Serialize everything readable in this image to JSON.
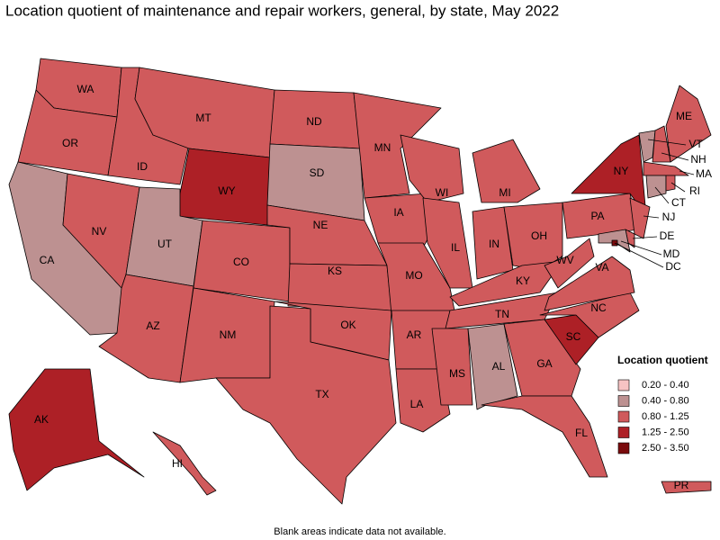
{
  "title": "Location quotient of maintenance and repair workers, general, by state, May 2022",
  "footnote": "Blank areas indicate data not available.",
  "legend": {
    "title": "Location quotient",
    "items": [
      {
        "label": "0.20 - 0.40",
        "color": "#f6c3c3"
      },
      {
        "label": "0.40 - 0.80",
        "color": "#bd9191"
      },
      {
        "label": "0.80 - 1.25",
        "color": "#d05a5c"
      },
      {
        "label": "1.25 - 2.50",
        "color": "#ad2026"
      },
      {
        "label": "2.50 - 3.50",
        "color": "#7a0b0d"
      }
    ]
  },
  "states": [
    {
      "label": "WA",
      "bin": 2
    },
    {
      "label": "OR",
      "bin": 2
    },
    {
      "label": "CA",
      "bin": 1
    },
    {
      "label": "NV",
      "bin": 2
    },
    {
      "label": "ID",
      "bin": 2
    },
    {
      "label": "MT",
      "bin": 2
    },
    {
      "label": "WY",
      "bin": 3
    },
    {
      "label": "UT",
      "bin": 1
    },
    {
      "label": "CO",
      "bin": 2
    },
    {
      "label": "AZ",
      "bin": 2
    },
    {
      "label": "NM",
      "bin": 2
    },
    {
      "label": "ND",
      "bin": 2
    },
    {
      "label": "SD",
      "bin": 1
    },
    {
      "label": "NE",
      "bin": 2
    },
    {
      "label": "KS",
      "bin": 2
    },
    {
      "label": "OK",
      "bin": 2
    },
    {
      "label": "TX",
      "bin": 2
    },
    {
      "label": "MN",
      "bin": 2
    },
    {
      "label": "IA",
      "bin": 2
    },
    {
      "label": "MO",
      "bin": 2
    },
    {
      "label": "AR",
      "bin": 2
    },
    {
      "label": "LA",
      "bin": 2
    },
    {
      "label": "WI",
      "bin": 2
    },
    {
      "label": "IL",
      "bin": 2
    },
    {
      "label": "MI",
      "bin": 2
    },
    {
      "label": "IN",
      "bin": 2
    },
    {
      "label": "OH",
      "bin": 2
    },
    {
      "label": "KY",
      "bin": 2
    },
    {
      "label": "TN",
      "bin": 2
    },
    {
      "label": "MS",
      "bin": 2
    },
    {
      "label": "AL",
      "bin": 1
    },
    {
      "label": "GA",
      "bin": 2
    },
    {
      "label": "FL",
      "bin": 2
    },
    {
      "label": "SC",
      "bin": 3
    },
    {
      "label": "NC",
      "bin": 2
    },
    {
      "label": "VA",
      "bin": 2
    },
    {
      "label": "WV",
      "bin": 2
    },
    {
      "label": "PA",
      "bin": 2
    },
    {
      "label": "NY",
      "bin": 3
    },
    {
      "label": "VT",
      "bin": 1
    },
    {
      "label": "NH",
      "bin": 2
    },
    {
      "label": "ME",
      "bin": 2
    },
    {
      "label": "MA",
      "bin": 2
    },
    {
      "label": "CT",
      "bin": 1
    },
    {
      "label": "RI",
      "bin": 2
    },
    {
      "label": "NJ",
      "bin": 2
    },
    {
      "label": "DE",
      "bin": 2
    },
    {
      "label": "MD",
      "bin": 1
    },
    {
      "label": "DC",
      "bin": 4
    },
    {
      "label": "AK",
      "bin": 3
    },
    {
      "label": "HI",
      "bin": 2
    },
    {
      "label": "PR",
      "bin": 2
    }
  ]
}
